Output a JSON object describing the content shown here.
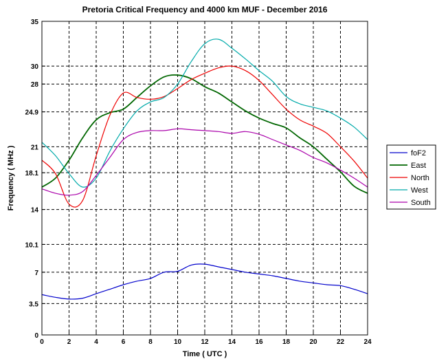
{
  "chart_data": {
    "type": "line",
    "title": "Pretoria Critical Frequency and 4000 km MUF - December 2016",
    "xlabel": "Time ( UTC )",
    "ylabel": "Frequency ( MHz )",
    "xlim": [
      0,
      24
    ],
    "ylim": [
      0,
      35
    ],
    "x_ticks": [
      0,
      2,
      4,
      6,
      8,
      10,
      12,
      14,
      16,
      18,
      20,
      22,
      24
    ],
    "y_ticks": [
      0,
      3.5,
      7,
      10.1,
      14,
      18.1,
      21,
      24.9,
      28,
      30,
      35
    ],
    "y_tick_labels": [
      "0",
      "3.5",
      "7",
      "10.1",
      "14",
      "18.1",
      "21",
      "24.9",
      "28",
      "30",
      "35"
    ],
    "grid": true,
    "legend_position": "right",
    "x": [
      0,
      1,
      2,
      3,
      4,
      5,
      6,
      7,
      8,
      9,
      10,
      11,
      12,
      13,
      14,
      15,
      16,
      17,
      18,
      19,
      20,
      21,
      22,
      23,
      24
    ],
    "series": [
      {
        "name": "foF2",
        "color": "#0000cc",
        "width": 1.2,
        "values": [
          4.5,
          4.2,
          4.0,
          4.1,
          4.6,
          5.1,
          5.6,
          6.0,
          6.3,
          7.0,
          7.1,
          7.8,
          7.9,
          7.6,
          7.3,
          7.0,
          6.8,
          6.6,
          6.3,
          6.0,
          5.8,
          5.6,
          5.5,
          5.1,
          4.6
        ]
      },
      {
        "name": "East",
        "color": "#006600",
        "width": 1.8,
        "values": [
          16.5,
          17.5,
          19.5,
          22.0,
          24.0,
          24.8,
          25.2,
          26.5,
          27.8,
          28.8,
          29.0,
          28.6,
          27.7,
          27.0,
          26.0,
          25.0,
          24.2,
          23.6,
          23.1,
          22.0,
          21.0,
          19.6,
          18.2,
          16.6,
          15.8
        ]
      },
      {
        "name": "North",
        "color": "#ee0000",
        "width": 1.2,
        "values": [
          19.5,
          18.0,
          14.6,
          15.0,
          20.0,
          24.5,
          27.0,
          26.5,
          26.3,
          26.6,
          27.5,
          28.5,
          29.2,
          29.8,
          30.0,
          29.5,
          28.4,
          26.8,
          25.2,
          24.0,
          23.3,
          22.5,
          21.0,
          19.4,
          17.5
        ]
      },
      {
        "name": "West",
        "color": "#00aaaa",
        "width": 1.2,
        "values": [
          21.5,
          20.0,
          18.0,
          16.5,
          17.5,
          20.5,
          23.0,
          25.0,
          26.0,
          26.5,
          28.0,
          30.5,
          32.5,
          33.0,
          32.0,
          30.8,
          29.5,
          28.3,
          26.6,
          25.8,
          25.4,
          25.0,
          24.2,
          23.2,
          21.8
        ]
      },
      {
        "name": "South",
        "color": "#aa00aa",
        "width": 1.2,
        "values": [
          16.3,
          15.8,
          15.6,
          16.0,
          17.8,
          19.8,
          21.8,
          22.6,
          22.8,
          22.8,
          23.0,
          22.9,
          22.8,
          22.7,
          22.5,
          22.7,
          22.4,
          21.8,
          21.2,
          20.6,
          19.8,
          19.2,
          18.4,
          17.5,
          16.5
        ]
      }
    ]
  }
}
